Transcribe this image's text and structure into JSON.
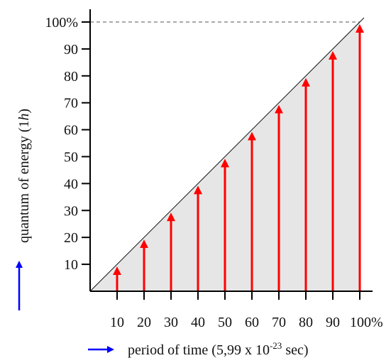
{
  "chart_data": {
    "type": "bar",
    "categories": [
      "10",
      "20",
      "30",
      "40",
      "50",
      "60",
      "70",
      "80",
      "90",
      "100%"
    ],
    "x": [
      10,
      20,
      30,
      40,
      50,
      60,
      70,
      80,
      90,
      100
    ],
    "values": [
      10,
      20,
      30,
      40,
      50,
      60,
      70,
      80,
      90,
      100
    ],
    "y_ticks": [
      "10",
      "20",
      "30",
      "40",
      "50",
      "60",
      "70",
      "80",
      "90",
      "100%"
    ],
    "y_tick_values": [
      10,
      20,
      30,
      40,
      50,
      60,
      70,
      80,
      90,
      100
    ],
    "xlabel": "period of time (5,99 x 10",
    "xlabel_exponent": "-23",
    "xlabel_suffix": " sec)",
    "ylabel": "quantum of energy (1",
    "ylabel_italic": "h",
    "ylabel_suffix": ")",
    "xlim": [
      0,
      100
    ],
    "ylim": [
      0,
      100
    ],
    "reference_line": "diagonal from origin to 100%, shaded area beneath",
    "top_guide": "dashed line at 100%",
    "grid": false,
    "colors": {
      "arrows": "#ff0000",
      "shade": "#e6e6e6",
      "axis": "#000000",
      "axis_title_arrows": "#0000ff"
    }
  }
}
